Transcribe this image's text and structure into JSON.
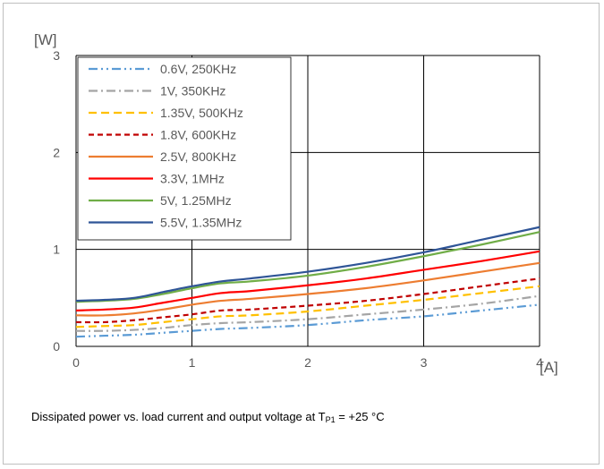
{
  "chart_data": {
    "type": "line",
    "title": "",
    "ylabel": "[W]",
    "xlabel": "[A]",
    "xlim": [
      0,
      4
    ],
    "ylim": [
      0,
      3
    ],
    "x_ticks": [
      "0",
      "1",
      "2",
      "3",
      "4"
    ],
    "y_ticks": [
      "0",
      "1",
      "2",
      "3"
    ],
    "grid": true,
    "legend_placement": "top-left",
    "x": [
      0,
      0.25,
      0.5,
      0.75,
      1,
      1.25,
      1.5,
      2,
      2.5,
      3,
      3.5,
      4
    ],
    "series": [
      {
        "name": "0.6V, 250KHz",
        "color": "#5b9bd5",
        "dash": "dashdotdot",
        "values": [
          0.1,
          0.11,
          0.12,
          0.14,
          0.16,
          0.18,
          0.19,
          0.22,
          0.27,
          0.31,
          0.37,
          0.43
        ]
      },
      {
        "name": "1V, 350KHz",
        "color": "#a5a5a5",
        "dash": "dashdot",
        "values": [
          0.16,
          0.16,
          0.17,
          0.19,
          0.22,
          0.24,
          0.25,
          0.28,
          0.33,
          0.38,
          0.44,
          0.52
        ]
      },
      {
        "name": "1.35V, 500KHz",
        "color": "#ffc000",
        "dash": "dash",
        "values": [
          0.2,
          0.21,
          0.22,
          0.25,
          0.28,
          0.31,
          0.32,
          0.36,
          0.42,
          0.48,
          0.55,
          0.62
        ]
      },
      {
        "name": "1.8V, 600KHz",
        "color": "#c00000",
        "dash": "shortdash",
        "values": [
          0.25,
          0.25,
          0.27,
          0.3,
          0.33,
          0.37,
          0.38,
          0.42,
          0.47,
          0.54,
          0.62,
          0.7
        ]
      },
      {
        "name": "2.5V, 800KHz",
        "color": "#ed7d31",
        "dash": "solid",
        "values": [
          0.32,
          0.32,
          0.34,
          0.38,
          0.43,
          0.47,
          0.49,
          0.54,
          0.6,
          0.68,
          0.77,
          0.86
        ]
      },
      {
        "name": "3.3V, 1MHz",
        "color": "#ff0000",
        "dash": "solid",
        "values": [
          0.37,
          0.38,
          0.4,
          0.45,
          0.5,
          0.55,
          0.57,
          0.63,
          0.7,
          0.79,
          0.88,
          0.98
        ]
      },
      {
        "name": "5V, 1.25MHz",
        "color": "#70ad47",
        "dash": "solid",
        "values": [
          0.46,
          0.47,
          0.49,
          0.54,
          0.6,
          0.65,
          0.67,
          0.73,
          0.82,
          0.93,
          1.05,
          1.18
        ]
      },
      {
        "name": "5.5V, 1.35MHz",
        "color": "#2f5597",
        "dash": "solid",
        "values": [
          0.47,
          0.48,
          0.5,
          0.56,
          0.62,
          0.67,
          0.7,
          0.77,
          0.86,
          0.97,
          1.1,
          1.23
        ]
      }
    ]
  },
  "caption": {
    "prefix": "Dissipated power vs. load current and output voltage at T",
    "subscript": "P1",
    "suffix": " = +25 °C"
  }
}
